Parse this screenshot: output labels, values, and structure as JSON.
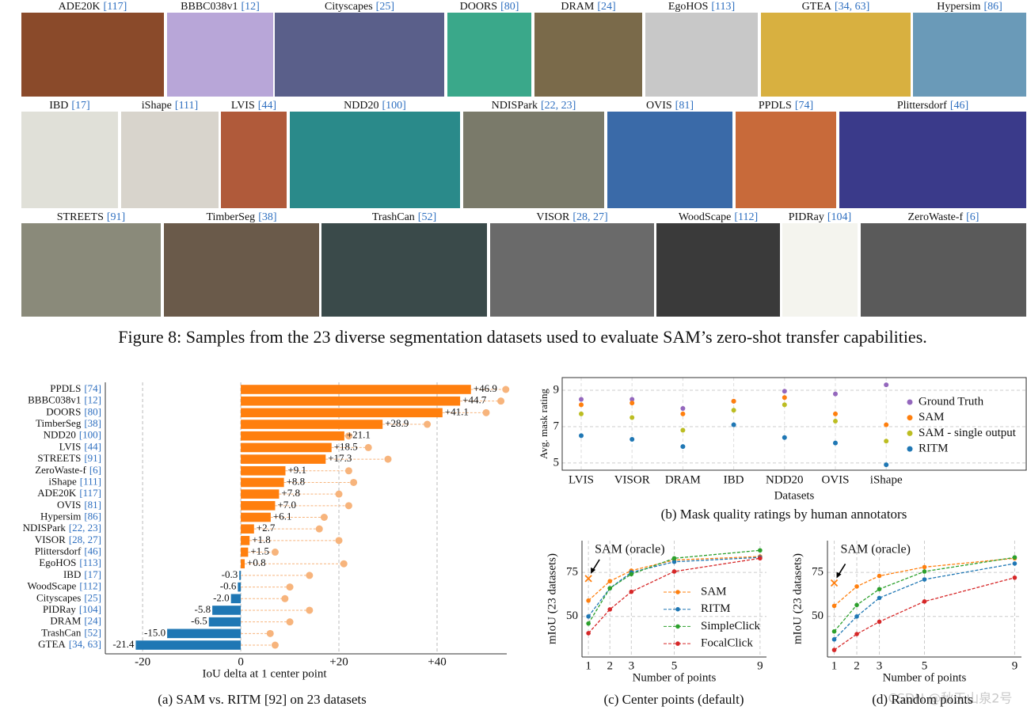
{
  "figure8": {
    "rows": [
      [
        {
          "name": "ADE20K",
          "ref": "[117]"
        },
        {
          "name": "BBBC038v1",
          "ref": "[12]"
        },
        {
          "name": "Cityscapes",
          "ref": "[25]"
        },
        {
          "name": "DOORS",
          "ref": "[80]"
        },
        {
          "name": "DRAM",
          "ref": "[24]"
        },
        {
          "name": "EgoHOS",
          "ref": "[113]"
        },
        {
          "name": "GTEA",
          "ref": "[34, 63]"
        },
        {
          "name": "Hypersim",
          "ref": "[86]"
        }
      ],
      [
        {
          "name": "IBD",
          "ref": "[17]"
        },
        {
          "name": "iShape",
          "ref": "[111]"
        },
        {
          "name": "LVIS",
          "ref": "[44]"
        },
        {
          "name": "NDD20",
          "ref": "[100]"
        },
        {
          "name": "NDISPark",
          "ref": "[22, 23]"
        },
        {
          "name": "OVIS",
          "ref": "[81]"
        },
        {
          "name": "PPDLS",
          "ref": "[74]"
        },
        {
          "name": "Plittersdorf",
          "ref": "[46]"
        }
      ],
      [
        {
          "name": "STREETS",
          "ref": "[91]"
        },
        {
          "name": "TimberSeg",
          "ref": "[38]"
        },
        {
          "name": "TrashCan",
          "ref": "[52]"
        },
        {
          "name": "VISOR",
          "ref": "[28, 27]"
        },
        {
          "name": "WoodScape",
          "ref": "[112]"
        },
        {
          "name": "PIDRay",
          "ref": "[104]"
        },
        {
          "name": "ZeroWaste-f",
          "ref": "[6]"
        }
      ]
    ],
    "caption": "Figure 8: Samples from the 23 diverse segmentation datasets used to evaluate SAM’s zero-shot transfer capabilities."
  },
  "chart_data": [
    {
      "type": "bar",
      "orientation": "horizontal",
      "categories": [
        "PPDLS",
        "BBBC038v1",
        "DOORS",
        "TimberSeg",
        "NDD20",
        "LVIS",
        "STREETS",
        "ZeroWaste-f",
        "iShape",
        "ADE20K",
        "OVIS",
        "Hypersim",
        "NDISPark",
        "VISOR",
        "Plittersdorf",
        "EgoHOS",
        "IBD",
        "WoodScape",
        "Cityscapes",
        "PIDRay",
        "DRAM",
        "TrashCan",
        "GTEA"
      ],
      "category_refs": [
        "[74]",
        "[12]",
        "[80]",
        "[38]",
        "[100]",
        "[44]",
        "[91]",
        "[6]",
        "[111]",
        "[117]",
        "[81]",
        "[86]",
        "[22, 23]",
        "[28, 27]",
        "[46]",
        "[113]",
        "[17]",
        "[112]",
        "[25]",
        "[104]",
        "[24]",
        "[52]",
        "[34, 63]"
      ],
      "series": [
        {
          "values": [
            46.9,
            44.7,
            41.1,
            28.9,
            21.1,
            18.5,
            17.3,
            9.1,
            8.8,
            7.8,
            7.0,
            6.1,
            2.7,
            1.8,
            1.5,
            0.8,
            -0.3,
            -0.6,
            -2.0,
            -5.8,
            -6.5,
            -15.0,
            -21.4
          ],
          "value_labels": [
            "+46.9",
            "+44.7",
            "+41.1",
            "+28.9",
            "+21.1",
            "+18.5",
            "+17.3",
            "+9.1",
            "+8.8",
            "+7.8",
            "+7.0",
            "+6.1",
            "+2.7",
            "+1.8",
            "+1.5",
            "+0.8",
            "-0.3",
            "-0.6",
            "-2.0",
            "-5.8",
            "-6.5",
            "-15.0",
            "-21.4"
          ],
          "color": "#ff7f0e",
          "negative_color": "#1f77b4"
        },
        {
          "values": [
            54,
            53,
            50,
            38,
            22,
            26,
            30,
            22,
            23,
            20,
            22,
            17,
            16,
            20,
            7,
            21,
            14,
            10,
            9,
            14,
            10,
            6,
            7
          ],
          "color": "#f7b47c"
        }
      ],
      "xlim": [
        -27.6,
        54.2
      ],
      "xticks": [
        -20,
        0,
        {
          "value": 20,
          "label": "+20"
        },
        {
          "value": 40,
          "label": "+40"
        }
      ],
      "xlabel": "IoU delta at 1 center point",
      "caption": "(a) SAM vs. RITM [92] on 23 datasets",
      "grid": true
    },
    {
      "type": "scatter",
      "categories": [
        "LVIS",
        "VISOR",
        "DRAM",
        "IBD",
        "NDD20",
        "OVIS",
        "iShape"
      ],
      "series": [
        {
          "name": "Ground Truth",
          "color": "#9467bd",
          "values": [
            8.5,
            8.5,
            8.0,
            8.4,
            8.95,
            8.8,
            9.3
          ]
        },
        {
          "name": "SAM",
          "color": "#ff7f0e",
          "values": [
            8.2,
            8.3,
            7.7,
            8.4,
            8.6,
            7.7,
            7.1
          ]
        },
        {
          "name": "SAM - single output",
          "color": "#bcbd22",
          "values": [
            7.7,
            7.5,
            6.8,
            7.9,
            8.2,
            7.3,
            6.2
          ]
        },
        {
          "name": "RITM",
          "color": "#1f77b4",
          "values": [
            6.5,
            6.3,
            5.9,
            7.1,
            6.4,
            6.1,
            4.9
          ]
        }
      ],
      "ylim": [
        4.6,
        9.7
      ],
      "yticks": [
        5,
        7,
        9
      ],
      "ylabel": "Avg. mask rating",
      "xlabel": "Datasets",
      "caption": "(b) Mask quality ratings by human annotators",
      "grid": true,
      "legend": "right"
    },
    {
      "type": "line",
      "x": [
        1,
        2,
        3,
        5,
        9
      ],
      "xlim": [
        0.7,
        9.3
      ],
      "xticks": [
        1,
        2,
        3,
        5,
        9
      ],
      "ylim": [
        27,
        93
      ],
      "yticks": [
        50,
        75
      ],
      "series": [
        {
          "name": "SAM",
          "color": "#ff7f0e",
          "values": [
            59,
            70,
            76,
            82,
            84
          ]
        },
        {
          "name": "RITM",
          "color": "#1f77b4",
          "values": [
            50,
            66,
            75,
            81,
            83.5
          ]
        },
        {
          "name": "SimpleClick",
          "color": "#2ca02c",
          "values": [
            46,
            66,
            74,
            83,
            87.5
          ]
        },
        {
          "name": "FocalClick",
          "color": "#d62728",
          "values": [
            40.5,
            54,
            64,
            75.5,
            83
          ]
        }
      ],
      "annotation": {
        "text": "SAM (oracle)",
        "x": 1,
        "y": 71.5,
        "color": "#ff7f0e"
      },
      "ylabel": "mIoU (23 datasets)",
      "xlabel": "Number of points",
      "caption": "(c) Center points (default)",
      "grid": true,
      "legend": "lower right"
    },
    {
      "type": "line",
      "x": [
        1,
        2,
        3,
        5,
        9
      ],
      "xlim": [
        0.7,
        9.3
      ],
      "xticks": [
        1,
        2,
        3,
        5,
        9
      ],
      "ylim": [
        27,
        93
      ],
      "yticks": [
        50,
        75
      ],
      "series": [
        {
          "color": "#ff7f0e",
          "values": [
            56,
            67,
            73,
            78,
            83
          ]
        },
        {
          "color": "#1f77b4",
          "values": [
            37,
            50,
            60.5,
            71,
            80
          ]
        },
        {
          "color": "#2ca02c",
          "values": [
            41.5,
            56.5,
            65.5,
            75.5,
            83.5
          ]
        },
        {
          "color": "#d62728",
          "values": [
            31,
            40,
            47,
            58.5,
            72
          ]
        }
      ],
      "annotation": {
        "text": "SAM (oracle)",
        "x": 1,
        "y": 69,
        "color": "#ff7f0e"
      },
      "ylabel": "mIoU (23 datasets)",
      "xlabel": "Number of points",
      "caption": "(d) Random points",
      "grid": true
    }
  ],
  "watermark": "CSDN @秋天山泉2号"
}
